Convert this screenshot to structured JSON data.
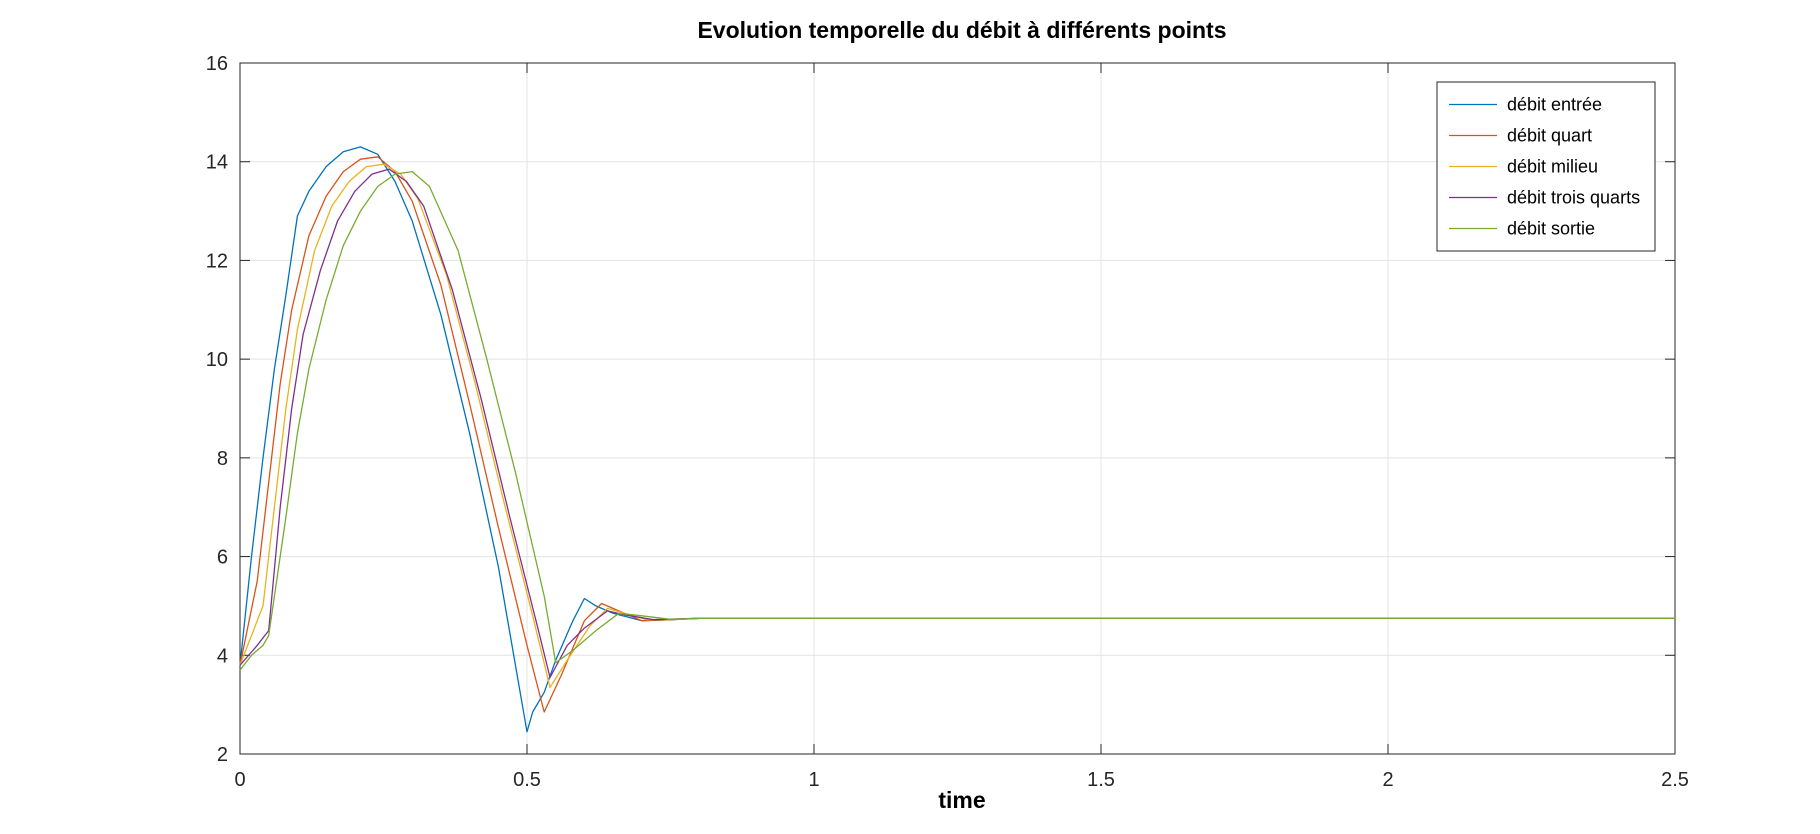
{
  "chart_data": {
    "type": "line",
    "title": "Evolution temporelle du débit à différents points",
    "xlabel": "time",
    "ylabel": "",
    "xlim": [
      0,
      2.5
    ],
    "ylim": [
      2,
      16
    ],
    "xticks": [
      0,
      0.5,
      1,
      1.5,
      2,
      2.5
    ],
    "xtick_labels": [
      "0",
      "0.5",
      "1",
      "1.5",
      "2",
      "2.5"
    ],
    "yticks": [
      2,
      4,
      6,
      8,
      10,
      12,
      14,
      16
    ],
    "ytick_labels": [
      "2",
      "4",
      "6",
      "8",
      "10",
      "12",
      "14",
      "16"
    ],
    "grid": true,
    "legend_position": "top-right",
    "series": [
      {
        "name": "débit entrée",
        "color": "#0072BD",
        "x": [
          0,
          0.02,
          0.04,
          0.06,
          0.08,
          0.1,
          0.12,
          0.15,
          0.18,
          0.21,
          0.24,
          0.27,
          0.3,
          0.35,
          0.4,
          0.45,
          0.5,
          0.51,
          0.53,
          0.55,
          0.58,
          0.6,
          0.62,
          0.65,
          0.7,
          0.75,
          0.8,
          0.9,
          1.0,
          2.5
        ],
        "y": [
          3.8,
          6.0,
          8.0,
          9.8,
          11.3,
          12.9,
          13.4,
          13.9,
          14.2,
          14.3,
          14.15,
          13.6,
          12.8,
          10.9,
          8.5,
          5.8,
          2.45,
          2.85,
          3.25,
          3.9,
          4.7,
          5.15,
          5.0,
          4.85,
          4.7,
          4.72,
          4.75,
          4.75,
          4.75,
          4.75
        ]
      },
      {
        "name": "débit quart",
        "color": "#D95319",
        "x": [
          0,
          0.03,
          0.05,
          0.07,
          0.09,
          0.12,
          0.15,
          0.18,
          0.21,
          0.24,
          0.27,
          0.3,
          0.35,
          0.4,
          0.45,
          0.5,
          0.53,
          0.56,
          0.6,
          0.63,
          0.66,
          0.7,
          0.75,
          0.8,
          0.9,
          1.0,
          2.5
        ],
        "y": [
          3.8,
          5.5,
          7.5,
          9.5,
          11.0,
          12.5,
          13.3,
          13.8,
          14.05,
          14.1,
          13.8,
          13.2,
          11.5,
          9.1,
          6.6,
          4.2,
          2.85,
          3.6,
          4.7,
          5.05,
          4.9,
          4.7,
          4.72,
          4.75,
          4.75,
          4.75,
          4.75
        ]
      },
      {
        "name": "débit milieu",
        "color": "#EDB120",
        "x": [
          0,
          0.04,
          0.06,
          0.08,
          0.1,
          0.13,
          0.16,
          0.19,
          0.22,
          0.25,
          0.28,
          0.31,
          0.36,
          0.41,
          0.46,
          0.51,
          0.54,
          0.57,
          0.61,
          0.64,
          0.67,
          0.71,
          0.76,
          0.8,
          0.9,
          1.0,
          2.5
        ],
        "y": [
          3.8,
          5.0,
          7.0,
          9.0,
          10.6,
          12.2,
          13.1,
          13.6,
          13.9,
          13.95,
          13.75,
          13.25,
          11.7,
          9.5,
          7.1,
          4.8,
          3.35,
          3.9,
          4.6,
          4.95,
          4.85,
          4.72,
          4.73,
          4.75,
          4.75,
          4.75,
          4.75
        ]
      },
      {
        "name": "débit trois quarts",
        "color": "#7E2F8E",
        "x": [
          0,
          0.03,
          0.05,
          0.07,
          0.09,
          0.11,
          0.14,
          0.17,
          0.2,
          0.23,
          0.26,
          0.29,
          0.32,
          0.37,
          0.42,
          0.47,
          0.52,
          0.54,
          0.57,
          0.6,
          0.64,
          0.67,
          0.72,
          0.77,
          0.8,
          0.9,
          1.0,
          2.5
        ],
        "y": [
          3.8,
          4.2,
          4.5,
          7.0,
          9.0,
          10.5,
          11.8,
          12.8,
          13.4,
          13.75,
          13.85,
          13.6,
          13.1,
          11.4,
          9.2,
          6.8,
          4.5,
          3.55,
          4.2,
          4.55,
          4.9,
          4.82,
          4.72,
          4.74,
          4.75,
          4.75,
          4.75,
          4.75
        ]
      },
      {
        "name": "débit sortie",
        "color": "#77AC30",
        "x": [
          0,
          0.02,
          0.04,
          0.05,
          0.08,
          0.1,
          0.12,
          0.15,
          0.18,
          0.21,
          0.24,
          0.27,
          0.3,
          0.33,
          0.38,
          0.43,
          0.48,
          0.53,
          0.55,
          0.58,
          0.62,
          0.66,
          0.7,
          0.75,
          0.8,
          0.9,
          1.0,
          2.5
        ],
        "y": [
          3.7,
          4.0,
          4.2,
          4.4,
          6.8,
          8.5,
          9.8,
          11.2,
          12.3,
          13.0,
          13.5,
          13.75,
          13.8,
          13.5,
          12.2,
          10.0,
          7.7,
          5.2,
          3.85,
          4.1,
          4.5,
          4.85,
          4.8,
          4.73,
          4.75,
          4.75,
          4.75,
          4.75
        ]
      }
    ]
  }
}
